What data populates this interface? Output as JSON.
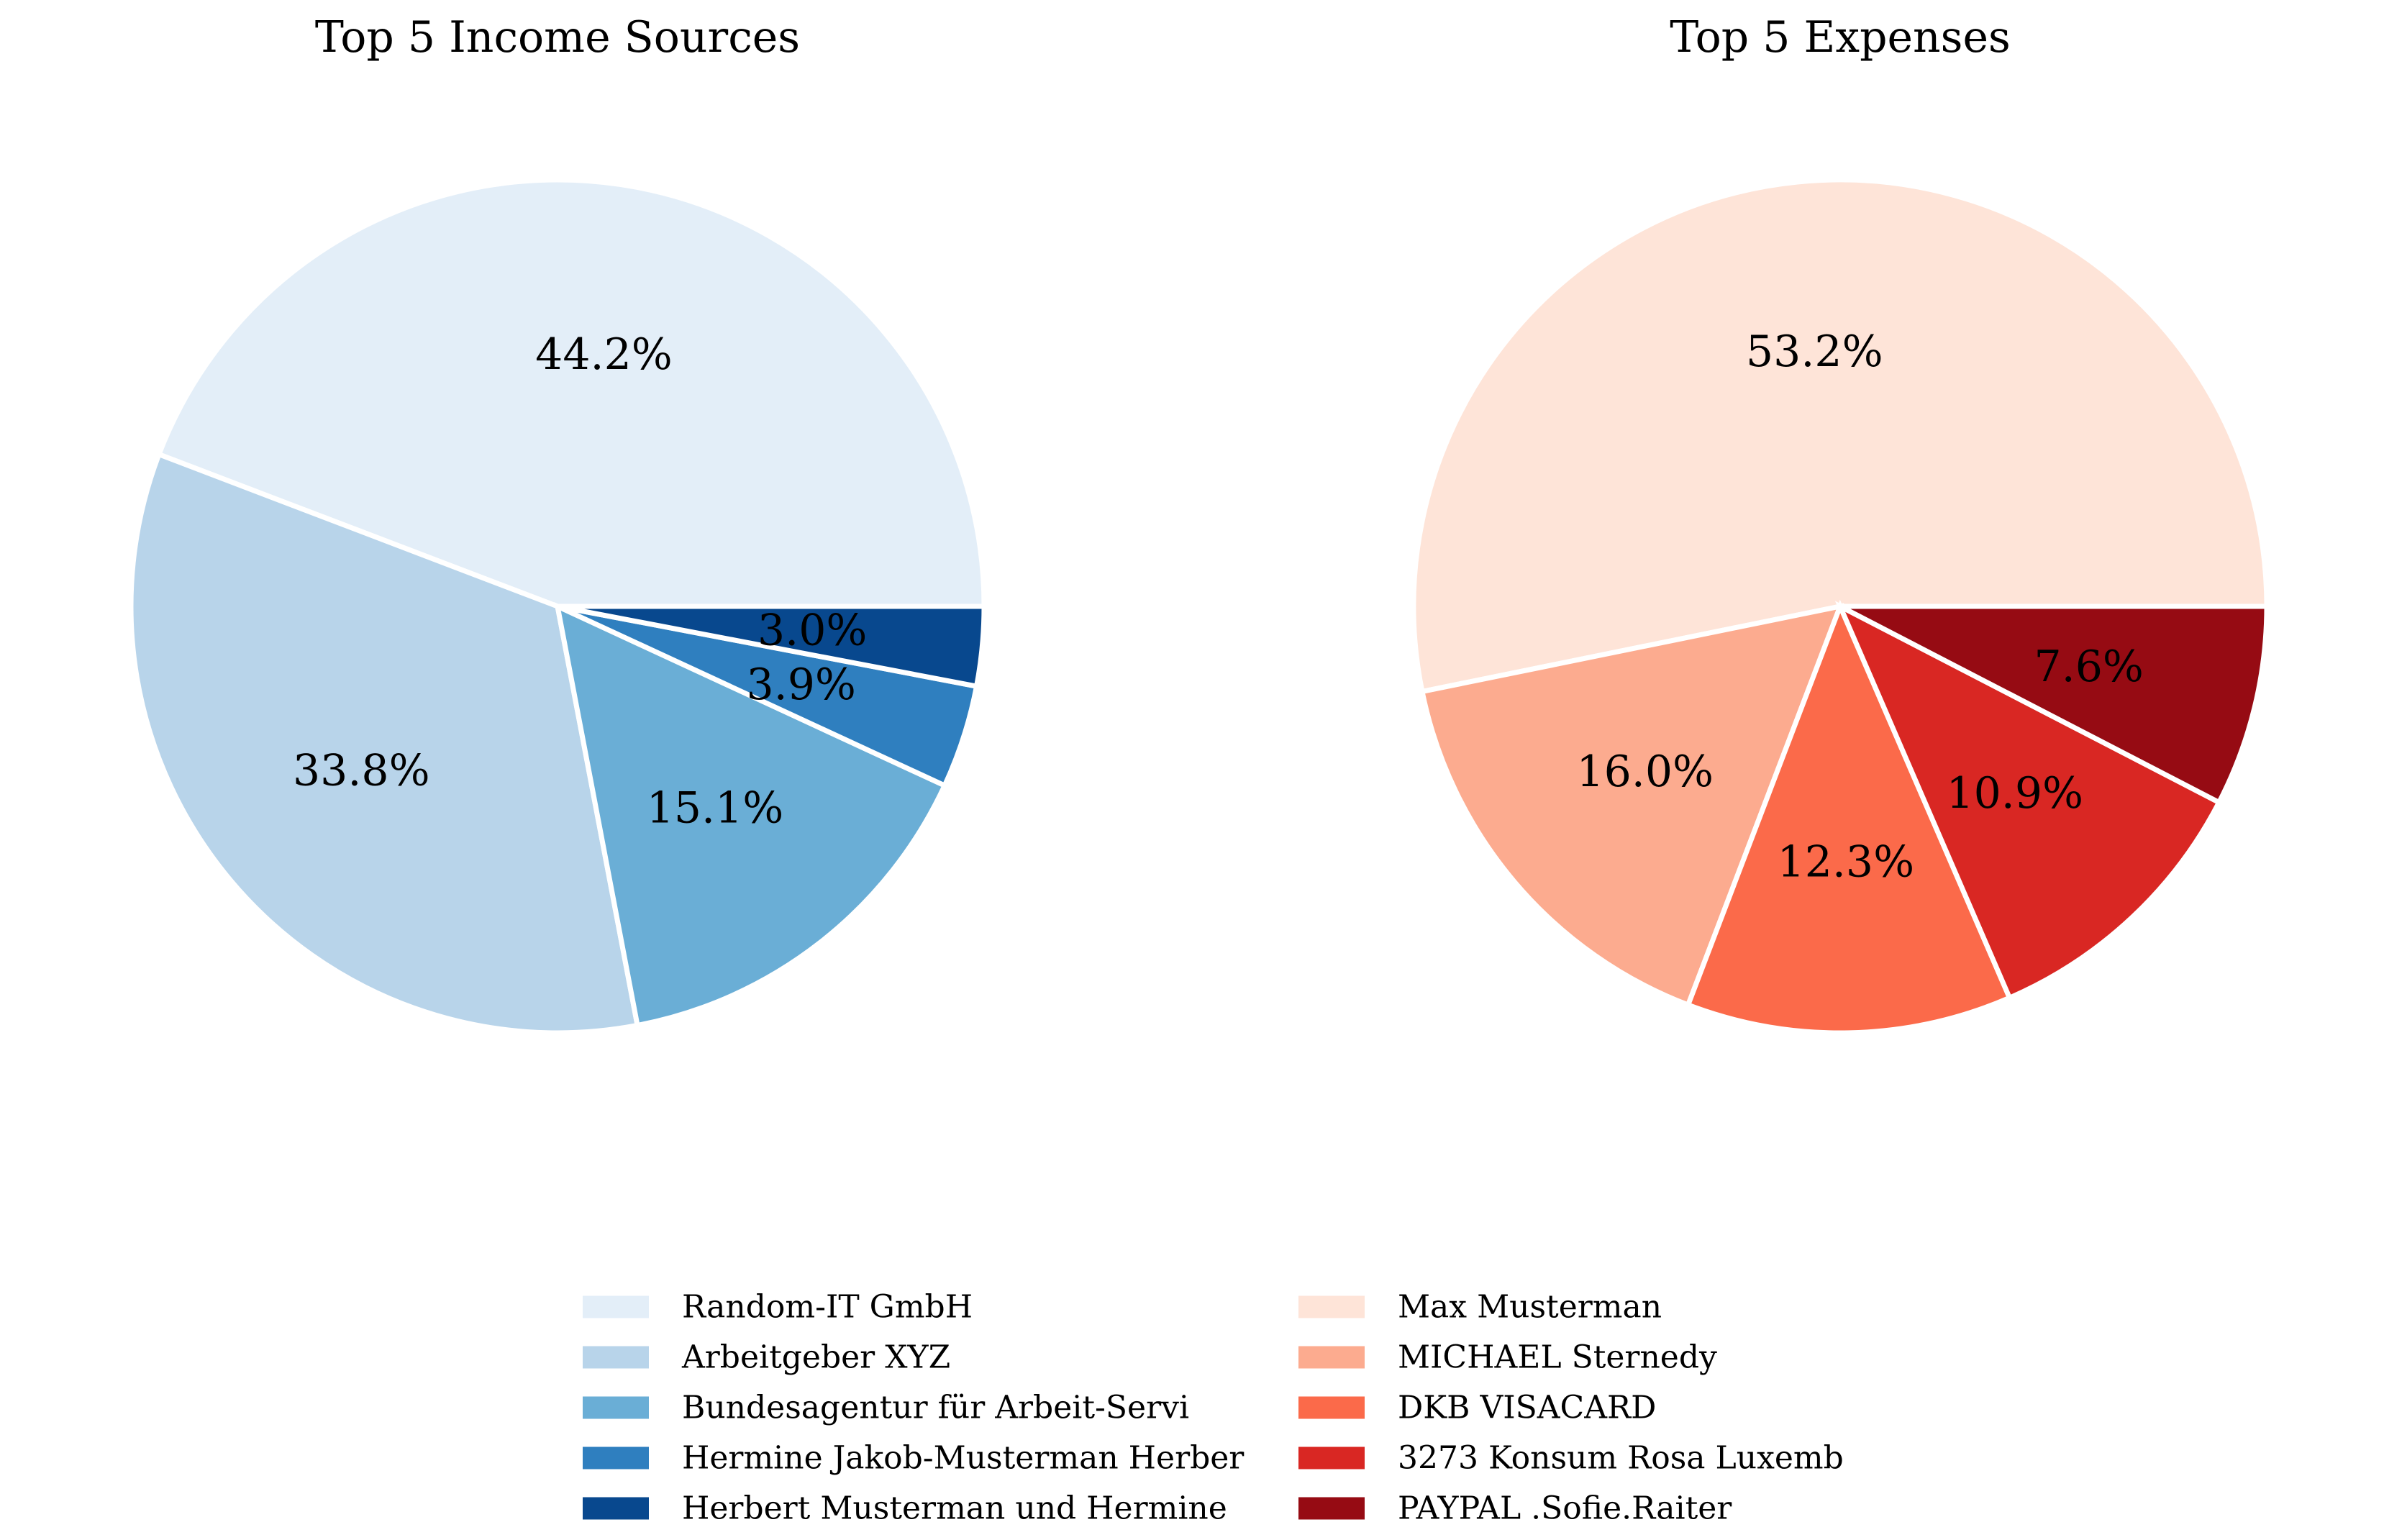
{
  "chart_data": [
    {
      "type": "pie",
      "title": "Top 5 Income Sources",
      "start_angle_deg": 0,
      "direction": "counterclockwise",
      "slices": [
        {
          "label": "Random-IT GmbH",
          "percent": 44.2,
          "percent_label": "44.2%",
          "color": "#e3eef8"
        },
        {
          "label": "Arbeitgeber XYZ",
          "percent": 33.8,
          "percent_label": "33.8%",
          "color": "#b8d4ea"
        },
        {
          "label": "Bundesagentur für Arbeit-Servi",
          "percent": 15.1,
          "percent_label": "15.1%",
          "color": "#6aaed6"
        },
        {
          "label": "Hermine Jakob-Musterman Herber",
          "percent": 3.9,
          "percent_label": "3.9%",
          "color": "#2f7fbf"
        },
        {
          "label": "Herbert Musterman und Hermine",
          "percent": 3.0,
          "percent_label": "3.0%",
          "color": "#08488e"
        }
      ]
    },
    {
      "type": "pie",
      "title": "Top 5 Expenses",
      "start_angle_deg": 0,
      "direction": "counterclockwise",
      "slices": [
        {
          "label": "Max Musterman",
          "percent": 53.2,
          "percent_label": "53.2%",
          "color": "#fee4d8"
        },
        {
          "label": "MICHAEL Sternedy",
          "percent": 16.0,
          "percent_label": "16.0%",
          "color": "#fcab8f"
        },
        {
          "label": "DKB VISACARD",
          "percent": 12.3,
          "percent_label": "12.3%",
          "color": "#fb6a4a"
        },
        {
          "label": "3273 Konsum Rosa Luxemb",
          "percent": 10.9,
          "percent_label": "10.9%",
          "color": "#d92723"
        },
        {
          "label": "PAYPAL .Sofie.Raiter",
          "percent": 7.6,
          "percent_label": "7.6%",
          "color": "#960b13"
        }
      ]
    }
  ],
  "legend": {
    "placement": "bottom-center",
    "columns": 2
  },
  "slice_edge_color": "#ffffff"
}
